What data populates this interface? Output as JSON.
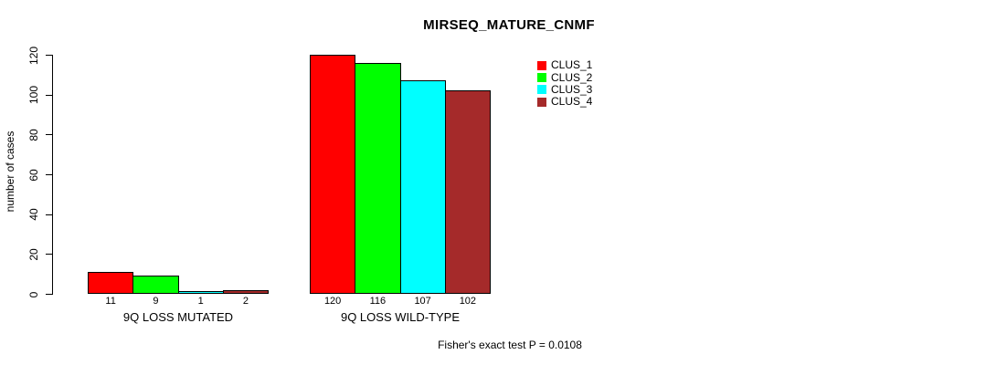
{
  "window": {
    "background": "#ffffff",
    "text_color": "#000000",
    "axis_color": "#000000"
  },
  "chart_data": {
    "type": "bar",
    "title": "MIRSEQ_MATURE_CNMF",
    "xlabel": "",
    "ylabel": "number of cases",
    "categories": [
      "9Q LOSS MUTATED",
      "9Q LOSS WILD-TYPE"
    ],
    "series": [
      {
        "name": "CLUS_1",
        "color": "#ff0000",
        "values": [
          11,
          120
        ]
      },
      {
        "name": "CLUS_2",
        "color": "#00ff00",
        "values": [
          9,
          116
        ]
      },
      {
        "name": "CLUS_3",
        "color": "#00ffff",
        "values": [
          1,
          107
        ]
      },
      {
        "name": "CLUS_4",
        "color": "#a52a2a",
        "values": [
          2,
          102
        ]
      }
    ],
    "bar_value_labels": [
      [
        "11",
        "9",
        "1",
        "2"
      ],
      [
        "120",
        "116",
        "107",
        "102"
      ]
    ],
    "ylim": [
      0,
      120
    ],
    "yticks": [
      0,
      20,
      40,
      60,
      80,
      100,
      120
    ],
    "grid": false,
    "legend_position": "top-right",
    "annotation": "Fisher's exact test P = 0.0108"
  }
}
